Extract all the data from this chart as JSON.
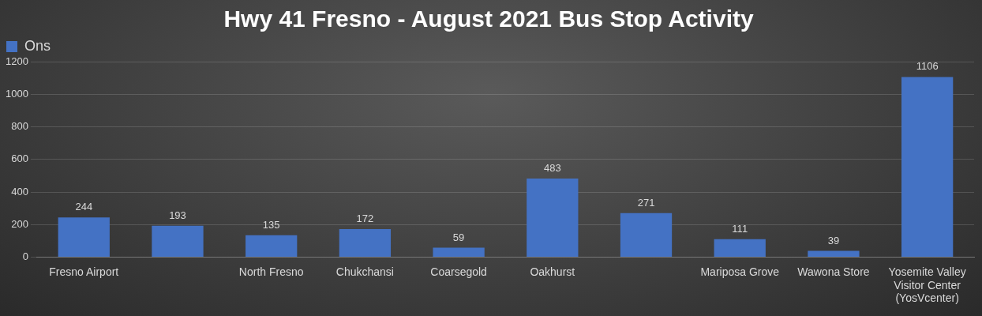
{
  "chart_data": {
    "type": "bar",
    "title": "Hwy 41 Fresno - August 2021 Bus Stop Activity",
    "categories": [
      "Fresno Airport",
      null,
      "North Fresno",
      "Chukchansi",
      "Coarsegold",
      "Oakhurst",
      null,
      "Mariposa Grove",
      "Wawona Store",
      "Yosemite Valley Visitor Center (YosVcenter)"
    ],
    "series": [
      {
        "name": "Ons",
        "color": "#4472c4",
        "values": [
          244,
          193,
          135,
          172,
          59,
          483,
          271,
          111,
          39,
          1106
        ]
      }
    ],
    "ylim": [
      0,
      1200
    ],
    "yticks": [
      0,
      200,
      400,
      600,
      800,
      1000,
      1200
    ],
    "grid": "y",
    "legend": "top left",
    "data_labels": true
  }
}
